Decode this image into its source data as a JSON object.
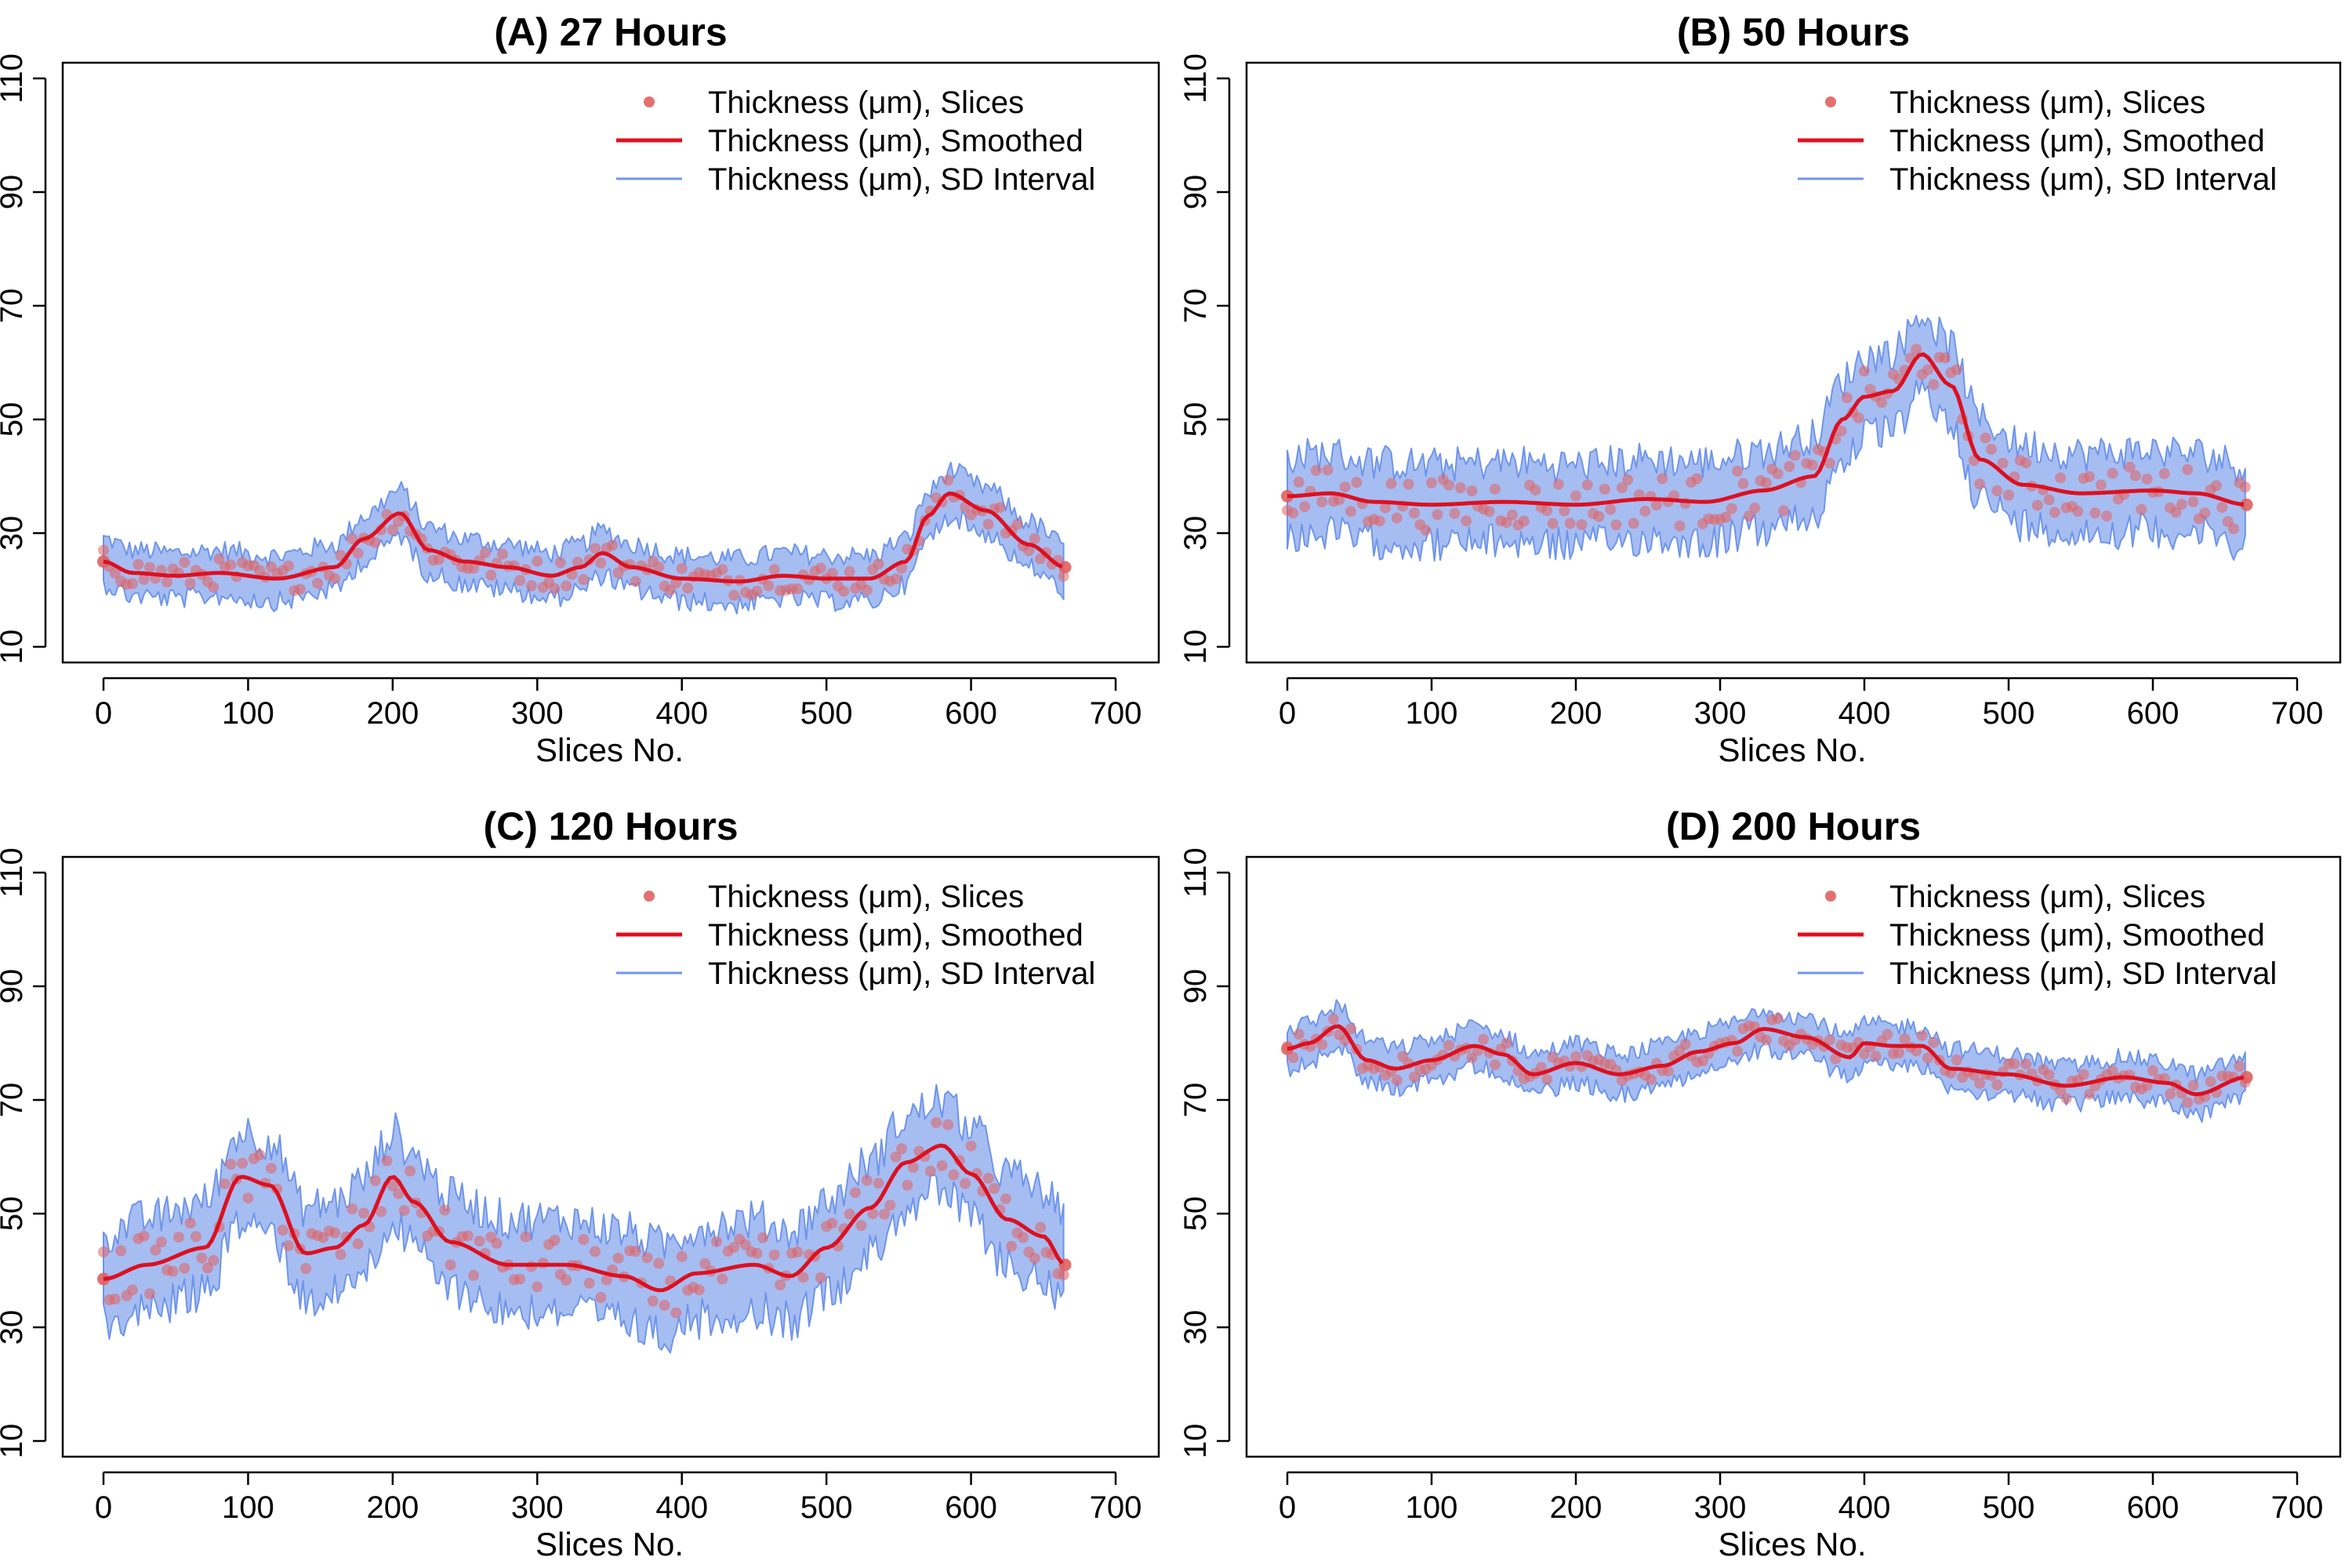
{
  "chart_data": [
    {
      "type": "line",
      "title": "(A) 27 Hours",
      "xlabel": "Slices No.",
      "ylabel": "",
      "xlim": [
        0,
        700
      ],
      "ylim": [
        10,
        110
      ],
      "x_ticks": [
        "0",
        "100",
        "200",
        "300",
        "400",
        "500",
        "600",
        "700"
      ],
      "y_ticks": [
        "10",
        "30",
        "50",
        "70",
        "90",
        "110"
      ],
      "grid": false,
      "legend_position": "top-right",
      "legend": [
        "Thickness (μm), Slices",
        "Thickness (μm), Smoothed",
        "Thickness (μm), SD Interval"
      ],
      "colors": {
        "points": "#e06060",
        "smoothed": "#dd1020",
        "sd": "#6f95ea"
      },
      "sd_halfwidth": 4,
      "x_max": 665,
      "smoothed": {
        "x": [
          0,
          20,
          50,
          80,
          120,
          160,
          180,
          205,
          225,
          250,
          280,
          310,
          330,
          345,
          365,
          400,
          440,
          470,
          500,
          530,
          555,
          570,
          585,
          610,
          640,
          665
        ],
        "y": [
          25,
          23,
          22.5,
          23,
          22,
          24,
          29,
          33.5,
          27,
          25,
          24,
          22.5,
          24,
          26.5,
          24,
          22,
          21.5,
          22.5,
          22,
          22,
          25,
          33,
          37,
          34,
          28,
          24
        ]
      }
    },
    {
      "type": "line",
      "title": "(B) 50 Hours",
      "xlabel": "Slices No.",
      "ylabel": "",
      "xlim": [
        0,
        700
      ],
      "ylim": [
        10,
        110
      ],
      "x_ticks": [
        "0",
        "100",
        "200",
        "300",
        "400",
        "500",
        "600",
        "700"
      ],
      "y_ticks": [
        "10",
        "30",
        "50",
        "70",
        "90",
        "110"
      ],
      "grid": false,
      "legend_position": "top-right",
      "legend": [
        "Thickness (μm), Slices",
        "Thickness (μm), Smoothed",
        "Thickness (μm), SD Interval"
      ],
      "colors": {
        "points": "#e06060",
        "smoothed": "#dd1020",
        "sd": "#6f95ea"
      },
      "sd_halfwidth": 7,
      "x_max": 665,
      "smoothed": {
        "x": [
          0,
          30,
          60,
          100,
          150,
          200,
          250,
          290,
          330,
          365,
          385,
          400,
          420,
          440,
          460,
          480,
          510,
          550,
          600,
          630,
          665
        ],
        "y": [
          36.5,
          37,
          35.5,
          35,
          35.5,
          35,
          36,
          35.5,
          37.5,
          40,
          50,
          54,
          55,
          61.5,
          56,
          43,
          38.5,
          37,
          37.5,
          37,
          35
        ]
      }
    },
    {
      "type": "line",
      "title": "(C) 120 Hours",
      "xlabel": "Slices No.",
      "ylabel": "",
      "xlim": [
        0,
        700
      ],
      "ylim": [
        10,
        110
      ],
      "x_ticks": [
        "0",
        "100",
        "200",
        "300",
        "400",
        "500",
        "600",
        "700"
      ],
      "y_ticks": [
        "10",
        "30",
        "50",
        "70",
        "90",
        "110"
      ],
      "grid": false,
      "legend_position": "top-right",
      "legend": [
        "Thickness (μm), Slices",
        "Thickness (μm), Smoothed",
        "Thickness (μm), SD Interval"
      ],
      "colors": {
        "points": "#e06060",
        "smoothed": "#dd1020",
        "sd": "#6f95ea"
      },
      "sd_halfwidth": 8,
      "x_max": 665,
      "smoothed": {
        "x": [
          0,
          30,
          70,
          95,
          115,
          140,
          160,
          180,
          200,
          215,
          240,
          280,
          320,
          360,
          385,
          410,
          450,
          475,
          500,
          530,
          555,
          580,
          600,
          625,
          650,
          665
        ],
        "y": [
          38.5,
          41,
          44,
          56.5,
          55,
          43,
          44,
          48,
          56.5,
          52,
          45,
          41,
          41,
          39,
          36.5,
          39.5,
          41,
          39,
          44,
          51,
          59,
          62,
          57,
          49,
          46,
          41
        ]
      }
    },
    {
      "type": "line",
      "title": "(D) 200 Hours",
      "xlabel": "Slices No.",
      "ylabel": "",
      "xlim": [
        0,
        700
      ],
      "ylim": [
        10,
        110
      ],
      "x_ticks": [
        "0",
        "100",
        "200",
        "300",
        "400",
        "500",
        "600",
        "700"
      ],
      "y_ticks": [
        "10",
        "30",
        "50",
        "70",
        "90",
        "110"
      ],
      "grid": false,
      "legend_position": "top-right",
      "legend": [
        "Thickness (μm), Slices",
        "Thickness (μm), Smoothed",
        "Thickness (μm), SD Interval"
      ],
      "colors": {
        "points": "#e06060",
        "smoothed": "#dd1020",
        "sd": "#6f95ea"
      },
      "sd_halfwidth": 3.5,
      "x_max": 665,
      "smoothed": {
        "x": [
          0,
          15,
          35,
          55,
          75,
          100,
          130,
          150,
          170,
          200,
          230,
          260,
          285,
          310,
          330,
          360,
          390,
          400,
          420,
          440,
          460,
          500,
          540,
          580,
          610,
          630,
          665
        ],
        "y": [
          79,
          80,
          83,
          77,
          75.5,
          77,
          79.5,
          78,
          74.5,
          76.5,
          74.5,
          76,
          78.5,
          80,
          82.5,
          81,
          77.5,
          80,
          79.5,
          79.5,
          75.5,
          74.5,
          72.5,
          74,
          73,
          71,
          74
        ]
      }
    }
  ]
}
